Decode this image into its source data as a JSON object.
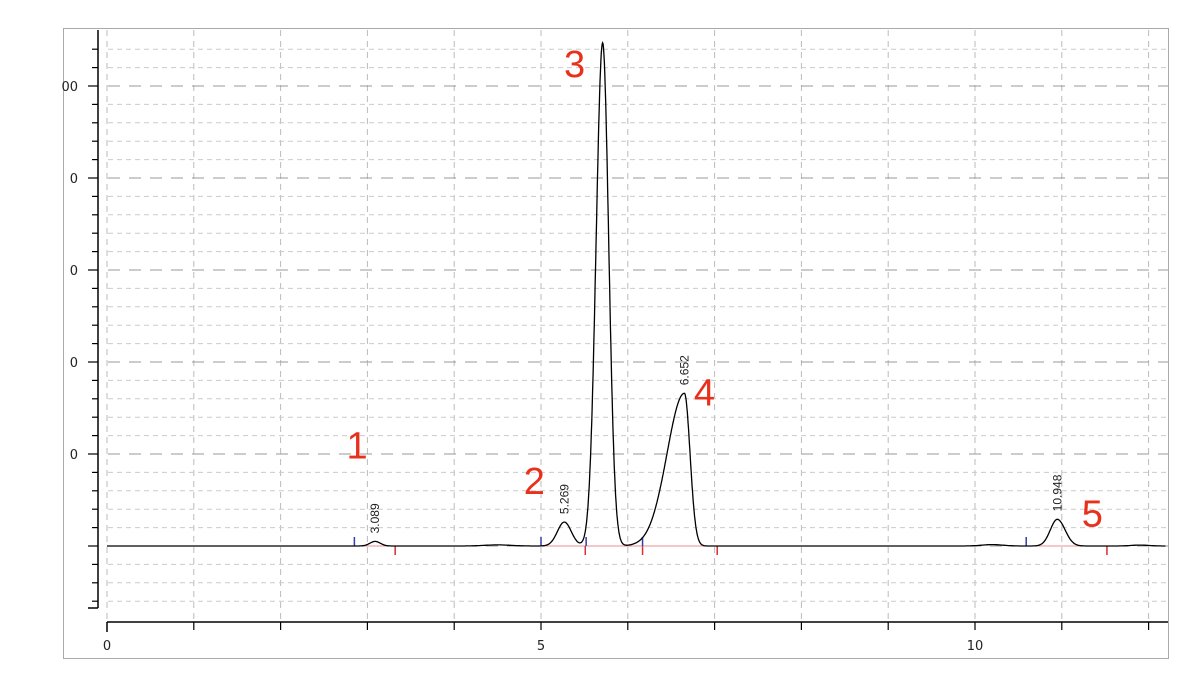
{
  "chart_data": {
    "type": "line",
    "title": "",
    "xlabel": "",
    "ylabel": "",
    "xlim": [
      0,
      12.2
    ],
    "ylim": [
      -0.68,
      5.65
    ],
    "x_ticks": [
      0,
      5,
      10
    ],
    "x_tick_labels": [
      "0",
      "5",
      "10"
    ],
    "y_ticks": [
      0,
      1,
      2,
      3,
      4,
      5
    ],
    "y_tick_labels": [
      "",
      "0",
      "0",
      "0",
      "0",
      "00"
    ],
    "grid": true,
    "colors": {
      "trace": "#000000",
      "peak_start": "#3a3aa8",
      "peak_end": "#d83030",
      "baseline": "#e89090",
      "annotation": "#e8301c",
      "grid": "#bbbbbb"
    },
    "peaks": [
      {
        "number": "1",
        "rt": 3.089,
        "rt_label": "3.089",
        "height": 0.05,
        "start": 2.85,
        "end": 3.32
      },
      {
        "number": "2",
        "rt": 5.269,
        "rt_label": "5.269",
        "height": 0.26,
        "start": 5.0,
        "end": 5.51
      },
      {
        "number": "3",
        "rt": 5.71,
        "rt_label": "",
        "height": 5.47,
        "start": 5.52,
        "end": 6.17
      },
      {
        "number": "4",
        "rt": 6.652,
        "rt_label": "6.652",
        "height": 1.66,
        "start": 6.17,
        "end": 7.03
      },
      {
        "number": "5",
        "rt": 10.948,
        "rt_label": "10.948",
        "height": 0.29,
        "start": 10.59,
        "end": 11.52
      }
    ]
  }
}
